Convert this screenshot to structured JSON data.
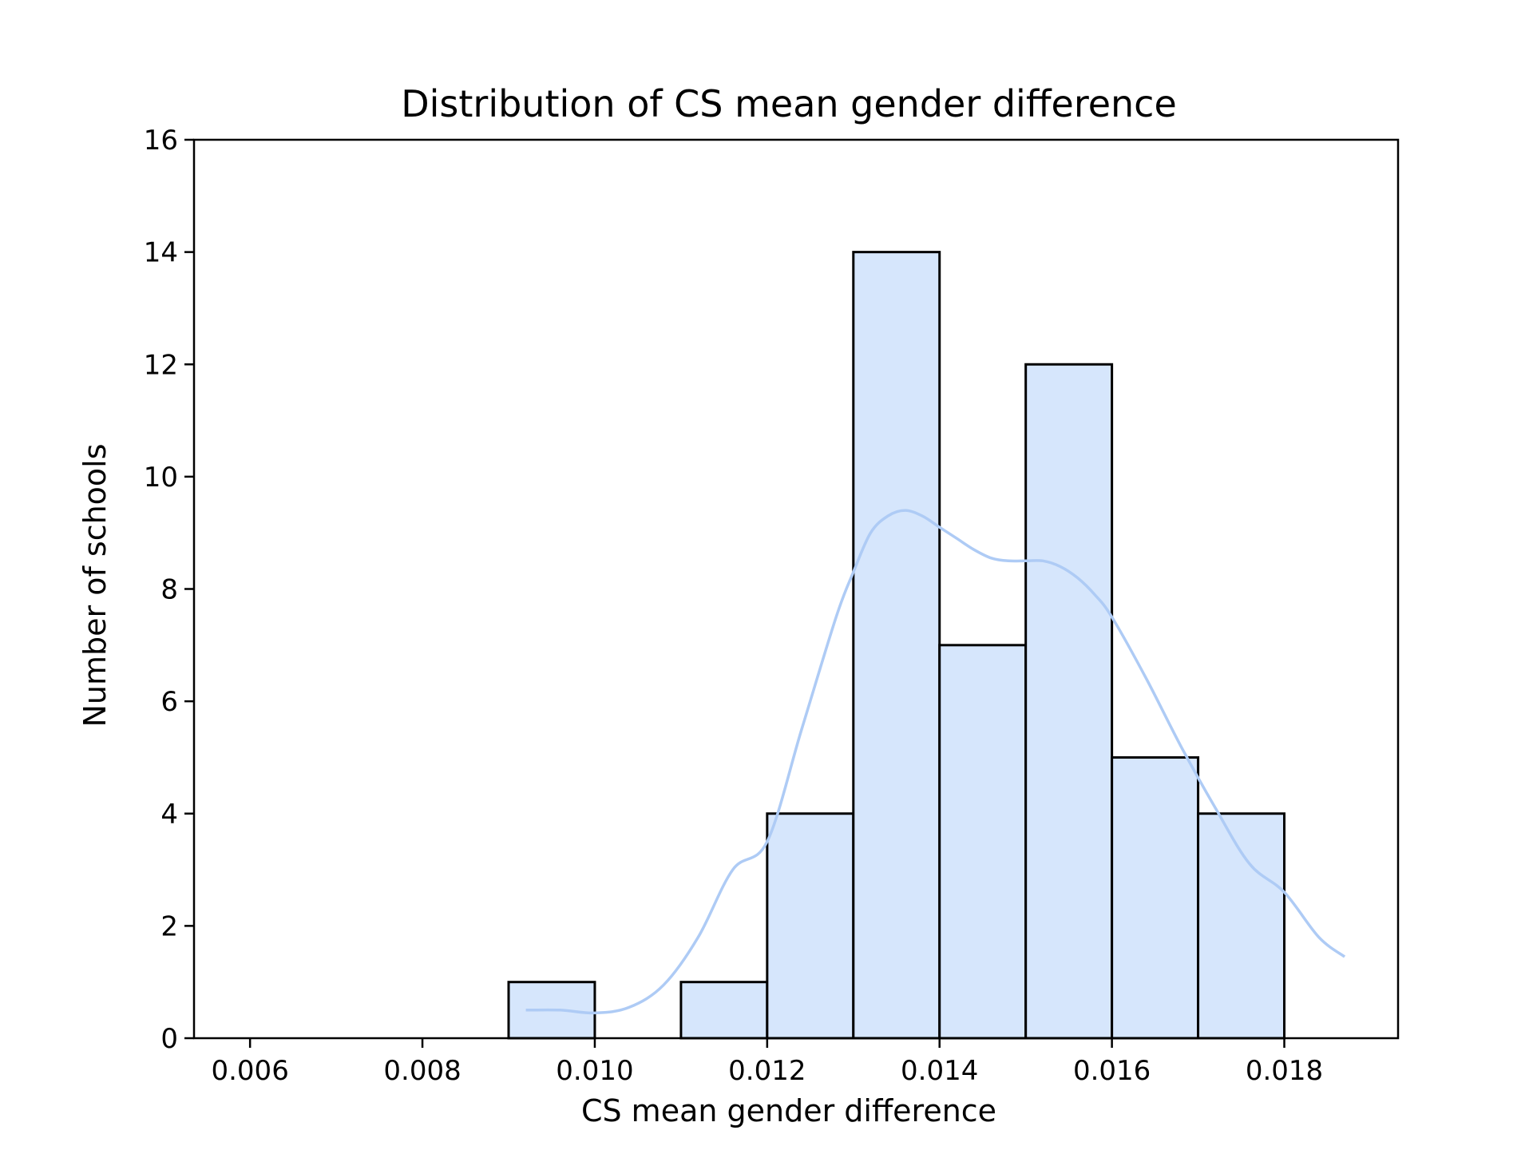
{
  "chart_data": {
    "type": "bar",
    "title": "Distribution of CS mean gender difference",
    "xlabel": "CS mean gender difference",
    "ylabel": "Number of schools",
    "xlim": [
      0.00535,
      0.01932
    ],
    "ylim": [
      0,
      16
    ],
    "x_ticks": [
      0.006,
      0.008,
      0.01,
      0.012,
      0.014,
      0.016,
      0.018
    ],
    "x_tick_labels": [
      "0.006",
      "0.008",
      "0.010",
      "0.012",
      "0.014",
      "0.016",
      "0.018"
    ],
    "y_ticks": [
      0,
      2,
      4,
      6,
      8,
      10,
      12,
      14,
      16
    ],
    "y_tick_labels": [
      "0",
      "2",
      "4",
      "6",
      "8",
      "10",
      "12",
      "14",
      "16"
    ],
    "bin_edges": [
      0.006,
      0.007,
      0.008,
      0.009,
      0.01,
      0.011,
      0.012,
      0.013,
      0.014,
      0.015,
      0.016,
      0.017,
      0.018
    ],
    "counts": [
      0,
      0,
      0,
      1,
      0,
      1,
      4,
      14,
      7,
      12,
      5,
      4
    ],
    "kde": {
      "x": [
        0.0092,
        0.0096,
        0.01,
        0.0104,
        0.0108,
        0.0112,
        0.0116,
        0.012,
        0.0124,
        0.0128,
        0.013,
        0.0132,
        0.0134,
        0.0136,
        0.0138,
        0.014,
        0.0142,
        0.0144,
        0.0146,
        0.0148,
        0.015,
        0.0152,
        0.0154,
        0.0156,
        0.0158,
        0.016,
        0.0164,
        0.0168,
        0.0172,
        0.0176,
        0.018,
        0.0184,
        0.0187
      ],
      "y": [
        0.5,
        0.5,
        0.45,
        0.55,
        0.95,
        1.8,
        3.0,
        3.5,
        5.5,
        7.5,
        8.3,
        9.0,
        9.3,
        9.4,
        9.3,
        9.1,
        8.9,
        8.7,
        8.55,
        8.5,
        8.5,
        8.5,
        8.4,
        8.2,
        7.9,
        7.5,
        6.4,
        5.2,
        4.1,
        3.1,
        2.6,
        1.8,
        1.45
      ]
    },
    "colors": {
      "bar_fill": "#d6e6fc",
      "bar_edge": "#000000",
      "kde_line": "#aecbf5"
    },
    "grid": false,
    "legend": "none"
  }
}
